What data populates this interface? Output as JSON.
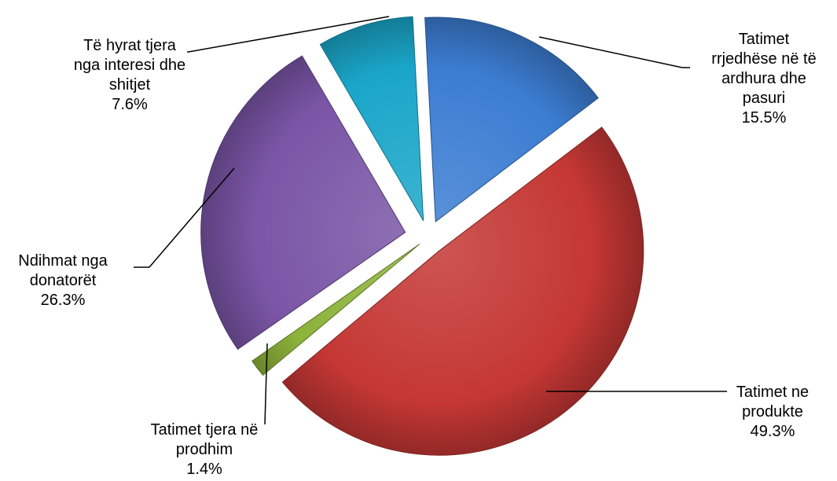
{
  "chart_data": {
    "type": "pie",
    "exploded": true,
    "labels_outside_with_leader_lines": true,
    "legend": "none",
    "slices": [
      {
        "label_lines": [
          "Tatimet",
          "rrjedhëse në të",
          "ardhura dhe",
          "pasuri"
        ],
        "value": 15.5,
        "value_label": "15.5%",
        "color": "#3C7DD2"
      },
      {
        "label_lines": [
          "Tatimet ne",
          "produkte"
        ],
        "value": 49.3,
        "value_label": "49.3%",
        "color": "#C43734"
      },
      {
        "label_lines": [
          "Tatimet tjera në",
          "prodhim"
        ],
        "value": 1.4,
        "value_label": "1.4%",
        "color": "#8DB33A"
      },
      {
        "label_lines": [
          "Ndihmat nga",
          "donatorët"
        ],
        "value": 26.3,
        "value_label": "26.3%",
        "color": "#7A55A6"
      },
      {
        "label_lines": [
          "Të hyrat tjera",
          "nga interesi dhe",
          "shitjet"
        ],
        "value": 7.6,
        "value_label": "7.6%",
        "color": "#1AA6C9"
      }
    ]
  }
}
